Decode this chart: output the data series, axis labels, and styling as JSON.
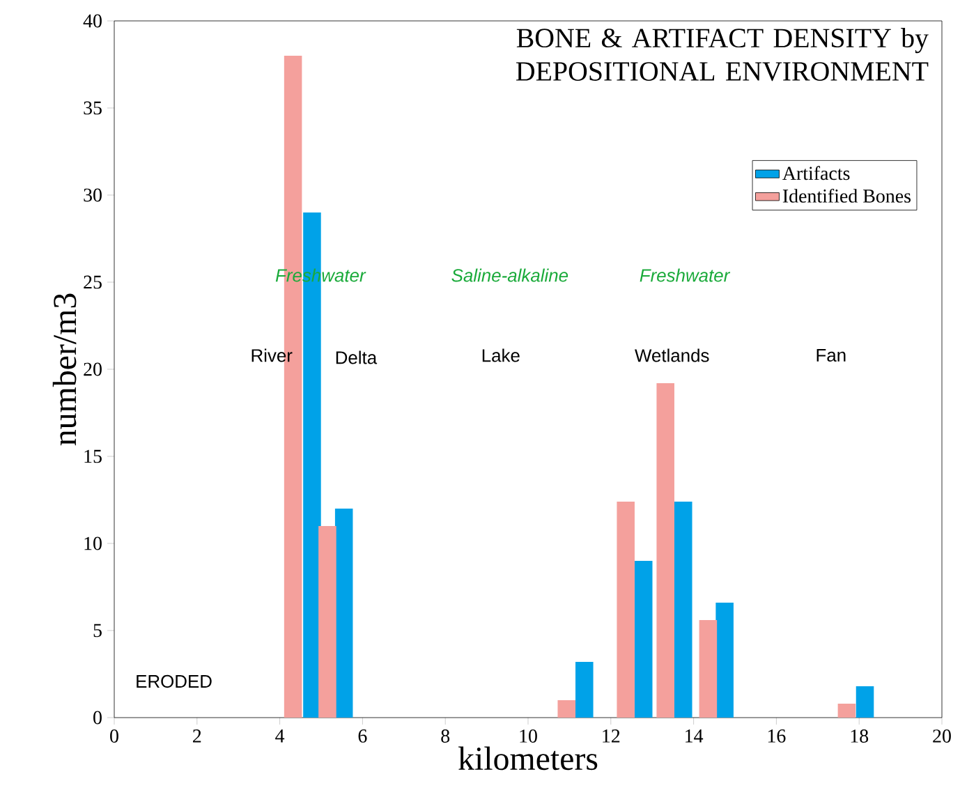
{
  "chart_data": {
    "type": "bar",
    "title": "BONE & ARTIFACT DENSITY by DEPOSITIONAL ENVIRONMENT",
    "xlabel": "kilometers",
    "ylabel": "number/m3",
    "series": [
      {
        "name": "Artifacts",
        "color": "#00a2e8",
        "x": [
          4.78,
          5.55,
          11.36,
          12.79,
          13.75,
          14.75,
          18.14
        ],
        "values": [
          29,
          12,
          3.2,
          9,
          12.4,
          6.6,
          1.8
        ]
      },
      {
        "name": "Identified Bones",
        "color": "#f4a09c",
        "x": [
          4.32,
          5.15,
          10.93,
          12.36,
          13.32,
          14.35,
          17.7
        ],
        "values": [
          38,
          11,
          1,
          12.4,
          19.2,
          5.6,
          0.8
        ]
      }
    ],
    "xlim": [
      0,
      20
    ],
    "ylim": [
      0,
      40
    ],
    "xticks": [
      0,
      2,
      4,
      6,
      8,
      10,
      12,
      14,
      16,
      18,
      20
    ],
    "yticks": [
      0,
      5,
      10,
      15,
      20,
      25,
      30,
      35,
      40
    ],
    "legend": "top right",
    "annotations": [
      "Freshwater",
      "Saline-alkaline",
      "Freshwater",
      "River",
      "Delta",
      "Lake",
      "Wetlands",
      "Fan",
      "ERODED"
    ]
  }
}
